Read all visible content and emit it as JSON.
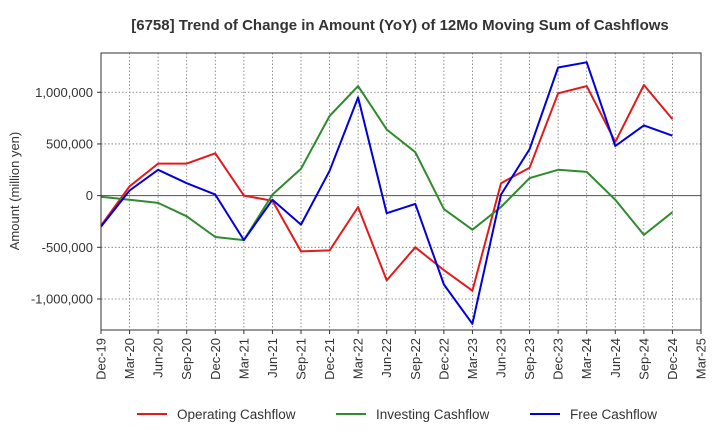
{
  "chart_data": {
    "type": "line",
    "title": "[6758]  Trend of Change in Amount (YoY) of 12Mo Moving Sum of Cashflows",
    "xlabel": "",
    "ylabel": "Amount (million yen)",
    "ylim": [
      -1300000,
      1380000
    ],
    "yticks": [
      -1000000,
      -500000,
      0,
      500000,
      1000000
    ],
    "ytick_labels": [
      "-1,000,000",
      "-500,000",
      "0",
      "500,000",
      "1,000,000"
    ],
    "xticks": [
      "Dec-19",
      "Mar-20",
      "Jun-20",
      "Sep-20",
      "Dec-20",
      "Mar-21",
      "Jun-21",
      "Sep-21",
      "Dec-21",
      "Mar-22",
      "Jun-22",
      "Sep-22",
      "Dec-22",
      "Mar-23",
      "Jun-23",
      "Sep-23",
      "Dec-23",
      "Mar-24",
      "Jun-24",
      "Sep-24",
      "Dec-24",
      "Mar-25"
    ],
    "grid": true,
    "legend_position": "bottom",
    "series": [
      {
        "name": "Operating Cashflow",
        "color": "#e31a1c",
        "values": [
          -290000,
          90000,
          310000,
          310000,
          410000,
          0,
          -50000,
          -540000,
          -530000,
          -110000,
          -820000,
          -500000,
          -720000,
          -920000,
          120000,
          270000,
          990000,
          1060000,
          520000,
          1070000,
          740000
        ]
      },
      {
        "name": "Investing Cashflow",
        "color": "#2e8b2e",
        "values": [
          -10000,
          -40000,
          -70000,
          -200000,
          -400000,
          -430000,
          10000,
          260000,
          770000,
          1060000,
          640000,
          420000,
          -130000,
          -330000,
          -110000,
          170000,
          250000,
          230000,
          -40000,
          -380000,
          -160000
        ]
      },
      {
        "name": "Free Cashflow",
        "color": "#0000dd",
        "values": [
          -300000,
          50000,
          250000,
          120000,
          10000,
          -430000,
          -40000,
          -280000,
          240000,
          950000,
          -170000,
          -80000,
          -860000,
          -1240000,
          10000,
          450000,
          1240000,
          1290000,
          480000,
          680000,
          580000
        ]
      }
    ]
  }
}
